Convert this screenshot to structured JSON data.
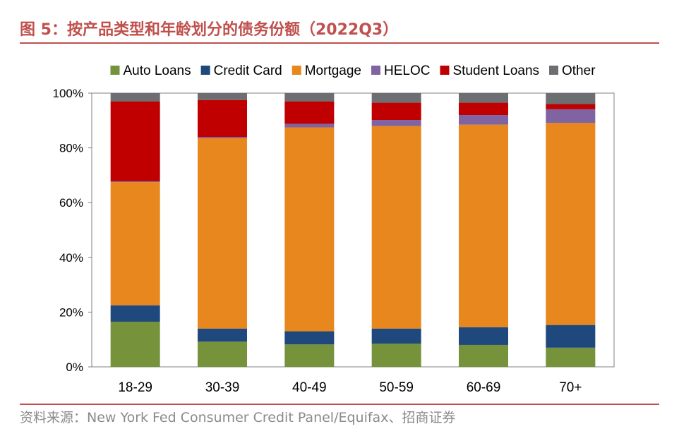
{
  "figure": {
    "title": "图 5：按产品类型和年龄划分的债务份额（2022Q3）",
    "source": "资料来源：New York Fed Consumer Credit Panel/Equifax、招商证券"
  },
  "chart_data": {
    "type": "bar",
    "stacked": true,
    "categories": [
      "18-29",
      "30-39",
      "40-49",
      "50-59",
      "60-69",
      "70+"
    ],
    "ylim": [
      0,
      100
    ],
    "yticks": [
      "0%",
      "20%",
      "40%",
      "60%",
      "80%",
      "100%"
    ],
    "legend_position": "top",
    "grid": false,
    "series": [
      {
        "name": "Auto Loans",
        "color": "#76933c",
        "values": [
          16.5,
          9.2,
          8.2,
          8.5,
          8.0,
          7.0
        ]
      },
      {
        "name": "Credit Card",
        "color": "#1f497d",
        "values": [
          6.0,
          4.8,
          4.8,
          5.5,
          6.5,
          8.3
        ]
      },
      {
        "name": "Mortgage",
        "color": "#e8871e",
        "values": [
          45.0,
          69.5,
          74.5,
          74.0,
          74.0,
          73.8
        ]
      },
      {
        "name": "HELOC",
        "color": "#8064a2",
        "values": [
          0.3,
          0.5,
          1.3,
          2.2,
          3.5,
          5.0
        ]
      },
      {
        "name": "Student Loans",
        "color": "#c00000",
        "values": [
          29.2,
          13.5,
          8.2,
          6.3,
          4.5,
          1.9
        ]
      },
      {
        "name": "Other",
        "color": "#6d6e71",
        "values": [
          3.0,
          2.5,
          3.0,
          3.5,
          3.5,
          4.0
        ]
      }
    ]
  }
}
